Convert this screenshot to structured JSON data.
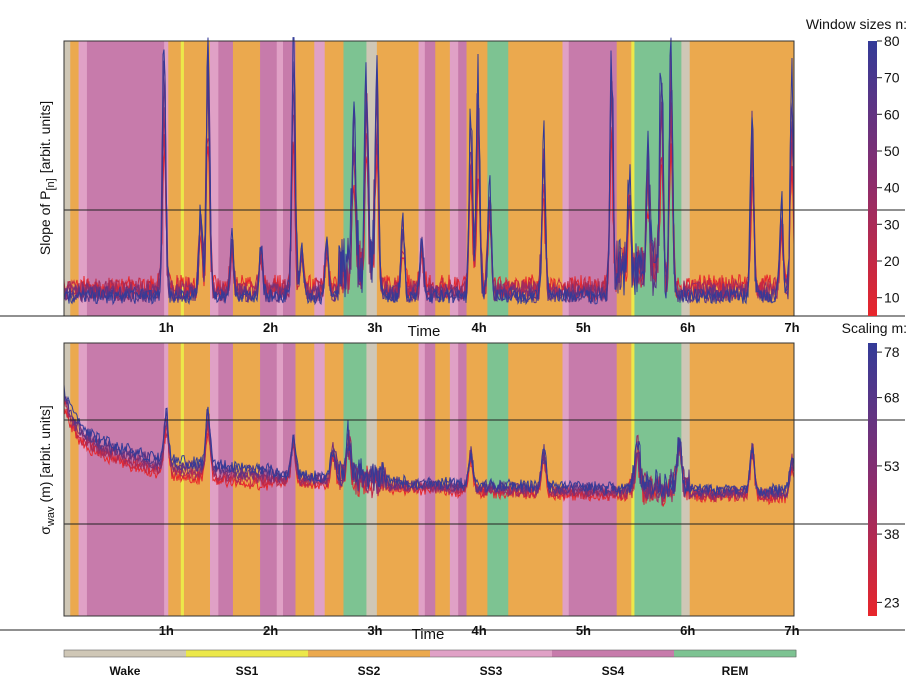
{
  "chart_data": [
    {
      "panel": "top",
      "type": "line",
      "title": "",
      "xlabel": "Time",
      "ylabel_main": "Slope of P",
      "ylabel_sub": "[n]",
      "ylabel_tail": "[arbit. units]",
      "x_range_hours": [
        0,
        7
      ],
      "x_ticks": [
        "1h",
        "2h",
        "3h",
        "4h",
        "5h",
        "6h",
        "7h"
      ],
      "baseline_level": 0.08,
      "spikes": [
        {
          "t": 0.96,
          "h": 1.0
        },
        {
          "t": 1.31,
          "h": 0.34
        },
        {
          "t": 1.38,
          "h": 1.0
        },
        {
          "t": 1.61,
          "h": 0.22
        },
        {
          "t": 1.89,
          "h": 0.2
        },
        {
          "t": 2.2,
          "h": 0.95
        },
        {
          "t": 2.28,
          "h": 0.18
        },
        {
          "t": 2.52,
          "h": 0.2
        },
        {
          "t": 2.78,
          "h": 0.6
        },
        {
          "t": 2.9,
          "h": 0.76
        },
        {
          "t": 3.0,
          "h": 0.84
        },
        {
          "t": 3.25,
          "h": 0.28
        },
        {
          "t": 3.43,
          "h": 0.22
        },
        {
          "t": 3.9,
          "h": 0.7
        },
        {
          "t": 3.97,
          "h": 0.86
        },
        {
          "t": 4.08,
          "h": 0.44
        },
        {
          "t": 4.6,
          "h": 0.62
        },
        {
          "t": 5.25,
          "h": 0.93
        },
        {
          "t": 5.42,
          "h": 0.36
        },
        {
          "t": 5.6,
          "h": 0.42
        },
        {
          "t": 5.73,
          "h": 0.86
        },
        {
          "t": 5.82,
          "h": 0.95
        },
        {
          "t": 6.6,
          "h": 0.7
        },
        {
          "t": 6.88,
          "h": 0.35
        },
        {
          "t": 6.98,
          "h": 0.8
        }
      ],
      "burst_intervals": [
        [
          2.63,
          3.0
        ],
        [
          5.3,
          5.72
        ]
      ],
      "colorbar": {
        "title": "Window sizes n:",
        "ticks": [
          10,
          20,
          30,
          40,
          50,
          60,
          70,
          80
        ],
        "range": [
          5,
          80
        ]
      }
    },
    {
      "panel": "bottom",
      "type": "line",
      "title": "",
      "xlabel": "Time",
      "ylabel_main": "σ",
      "ylabel_sub": "wav",
      "ylabel_tail": "(m)  [arbit. units]",
      "x_range_hours": [
        0,
        7
      ],
      "x_ticks": [
        "1h",
        "2h",
        "3h",
        "4h",
        "5h",
        "6h",
        "7h"
      ],
      "series_levels": [
        0.35,
        0.6
      ],
      "decay_start": 0.95,
      "peaks": [
        {
          "t": 0.98,
          "h": 0.3
        },
        {
          "t": 1.38,
          "h": 0.35
        },
        {
          "t": 2.2,
          "h": 0.25
        },
        {
          "t": 2.58,
          "h": 0.2
        },
        {
          "t": 2.73,
          "h": 0.25
        },
        {
          "t": 3.9,
          "h": 0.2
        },
        {
          "t": 4.6,
          "h": 0.25
        },
        {
          "t": 5.5,
          "h": 0.25
        },
        {
          "t": 5.9,
          "h": 0.3
        },
        {
          "t": 6.6,
          "h": 0.3
        },
        {
          "t": 6.98,
          "h": 0.2
        }
      ],
      "colorbar": {
        "title": "Scaling m:",
        "ticks": [
          23,
          38,
          53,
          68,
          78
        ],
        "range": [
          20,
          80
        ]
      }
    }
  ],
  "stages": {
    "colors": {
      "Wake": "#cfc7b6",
      "SS1": "#ece84a",
      "SS2": "#eba94e",
      "SS3": "#e0a1c6",
      "SS4": "#c77bab",
      "REM": "#7dc392"
    },
    "hypnogram": [
      [
        "Wake",
        0.0,
        0.06
      ],
      [
        "SS2",
        0.06,
        0.14
      ],
      [
        "SS3",
        0.14,
        0.22
      ],
      [
        "SS4",
        0.22,
        0.96
      ],
      [
        "SS3",
        0.96,
        1.0
      ],
      [
        "SS2",
        1.0,
        1.12
      ],
      [
        "SS1",
        1.12,
        1.15
      ],
      [
        "SS2",
        1.15,
        1.4
      ],
      [
        "SS3",
        1.4,
        1.48
      ],
      [
        "SS4",
        1.48,
        1.62
      ],
      [
        "SS2",
        1.62,
        1.88
      ],
      [
        "SS4",
        1.88,
        2.04
      ],
      [
        "SS3",
        2.04,
        2.1
      ],
      [
        "SS4",
        2.1,
        2.22
      ],
      [
        "SS2",
        2.22,
        2.4
      ],
      [
        "SS3",
        2.4,
        2.5
      ],
      [
        "SS2",
        2.5,
        2.68
      ],
      [
        "REM",
        2.68,
        2.9
      ],
      [
        "Wake",
        2.9,
        3.0
      ],
      [
        "SS2",
        3.0,
        3.4
      ],
      [
        "SS3",
        3.4,
        3.46
      ],
      [
        "SS4",
        3.46,
        3.56
      ],
      [
        "SS2",
        3.56,
        3.7
      ],
      [
        "SS3",
        3.7,
        3.78
      ],
      [
        "SS4",
        3.78,
        3.86
      ],
      [
        "SS2",
        3.86,
        4.06
      ],
      [
        "REM",
        4.06,
        4.26
      ],
      [
        "SS2",
        4.26,
        4.78
      ],
      [
        "SS3",
        4.78,
        4.84
      ],
      [
        "SS4",
        4.84,
        5.3
      ],
      [
        "SS2",
        5.3,
        5.44
      ],
      [
        "SS1",
        5.44,
        5.47
      ],
      [
        "REM",
        5.47,
        5.92
      ],
      [
        "Wake",
        5.92,
        6.0
      ],
      [
        "SS2",
        6.0,
        7.0
      ]
    ],
    "legend": [
      "Wake",
      "SS1",
      "SS2",
      "SS3",
      "SS4",
      "REM"
    ]
  },
  "gradient": {
    "low": "#e8262b",
    "mid": "#8a2d6e",
    "high": "#333b98"
  }
}
